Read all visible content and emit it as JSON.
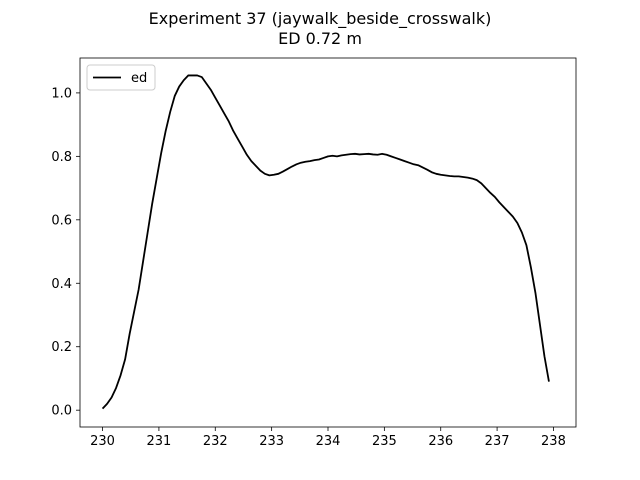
{
  "chart_data": {
    "type": "line",
    "title": "Experiment 37 (jaywalk_beside_crosswalk)",
    "subtitle": "ED 0.72 m",
    "xlabel": "",
    "ylabel": "",
    "xlim": [
      229.6,
      238.4
    ],
    "ylim": [
      -0.053,
      1.11
    ],
    "x_ticks": [
      230,
      231,
      232,
      233,
      234,
      235,
      236,
      237,
      238
    ],
    "y_ticks": [
      0.0,
      0.2,
      0.4,
      0.6,
      0.8,
      1.0
    ],
    "y_tick_labels": [
      "0.0",
      "0.2",
      "0.4",
      "0.6",
      "0.8",
      "1.0"
    ],
    "grid": false,
    "legend": {
      "position": "top-left",
      "entries": [
        "ed"
      ]
    },
    "series": [
      {
        "name": "ed",
        "color": "#000000",
        "x": [
          230.0,
          230.08,
          230.16,
          230.24,
          230.32,
          230.4,
          230.48,
          230.56,
          230.64,
          230.72,
          230.8,
          230.88,
          230.96,
          231.04,
          231.12,
          231.2,
          231.28,
          231.36,
          231.44,
          231.52,
          231.6,
          231.68,
          231.76,
          231.84,
          231.92,
          232.0,
          232.08,
          232.16,
          232.24,
          232.32,
          232.4,
          232.48,
          232.56,
          232.64,
          232.72,
          232.8,
          232.88,
          232.96,
          233.04,
          233.12,
          233.2,
          233.28,
          233.36,
          233.44,
          233.52,
          233.6,
          233.68,
          233.76,
          233.84,
          233.92,
          234.0,
          234.08,
          234.16,
          234.24,
          234.32,
          234.4,
          234.48,
          234.56,
          234.64,
          234.72,
          234.8,
          234.88,
          234.96,
          235.04,
          235.12,
          235.2,
          235.28,
          235.36,
          235.44,
          235.52,
          235.6,
          235.68,
          235.76,
          235.84,
          235.92,
          236.0,
          236.08,
          236.16,
          236.24,
          236.32,
          236.4,
          236.48,
          236.56,
          236.64,
          236.72,
          236.8,
          236.88,
          236.96,
          237.04,
          237.12,
          237.2,
          237.28,
          237.36,
          237.44,
          237.52,
          237.6,
          237.68,
          237.76,
          237.84,
          237.92
        ],
        "y": [
          0.005,
          0.02,
          0.04,
          0.07,
          0.11,
          0.16,
          0.24,
          0.31,
          0.38,
          0.47,
          0.56,
          0.65,
          0.73,
          0.81,
          0.88,
          0.94,
          0.99,
          1.02,
          1.04,
          1.055,
          1.055,
          1.055,
          1.05,
          1.03,
          1.01,
          0.985,
          0.96,
          0.935,
          0.91,
          0.88,
          0.855,
          0.83,
          0.805,
          0.785,
          0.77,
          0.755,
          0.745,
          0.74,
          0.742,
          0.745,
          0.752,
          0.76,
          0.768,
          0.775,
          0.78,
          0.783,
          0.785,
          0.788,
          0.79,
          0.795,
          0.8,
          0.802,
          0.8,
          0.803,
          0.805,
          0.807,
          0.808,
          0.806,
          0.807,
          0.808,
          0.806,
          0.805,
          0.808,
          0.805,
          0.8,
          0.795,
          0.79,
          0.785,
          0.78,
          0.775,
          0.772,
          0.765,
          0.758,
          0.75,
          0.745,
          0.742,
          0.74,
          0.738,
          0.737,
          0.737,
          0.735,
          0.733,
          0.73,
          0.725,
          0.715,
          0.7,
          0.685,
          0.672,
          0.655,
          0.64,
          0.625,
          0.61,
          0.59,
          0.56,
          0.52,
          0.45,
          0.37,
          0.27,
          0.17,
          0.09
        ]
      }
    ]
  }
}
